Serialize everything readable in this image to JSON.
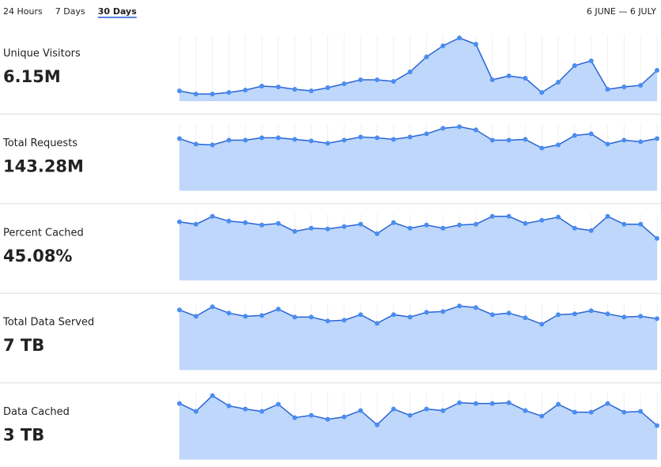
{
  "tabs": [
    {
      "label": "24 Hours",
      "selected": false
    },
    {
      "label": "7 Days",
      "selected": false
    },
    {
      "label": "30 Days",
      "selected": true
    }
  ],
  "date_range": "6 JUNE — 6 JULY",
  "chart_data": [
    {
      "type": "area",
      "title": "Unique Visitors",
      "total": "6.15M",
      "ylim": [
        0,
        84
      ],
      "grid": true,
      "color": "#2a64d6",
      "fill": "#bed7fb",
      "marker_color": "#4a8df0",
      "values": [
        13,
        9,
        9,
        11,
        14,
        19,
        18,
        15,
        13,
        17,
        22,
        27,
        27,
        25,
        37,
        56,
        70,
        80,
        72,
        27,
        32,
        29,
        11,
        24,
        45,
        51,
        15,
        18,
        20,
        39
      ]
    },
    {
      "type": "area",
      "title": "Total Requests",
      "total": "143.28M",
      "ylim": [
        0,
        84
      ],
      "grid": true,
      "color": "#2a64d6",
      "fill": "#bed7fb",
      "marker_color": "#4a8df0",
      "values": [
        66,
        59,
        58,
        64,
        64,
        67,
        67,
        65,
        63,
        60,
        64,
        68,
        67,
        65,
        68,
        72,
        79,
        81,
        77,
        64,
        64,
        65,
        54,
        58,
        70,
        72,
        59,
        64,
        62,
        66
      ]
    },
    {
      "type": "area",
      "title": "Percent Cached",
      "total": "45.08%",
      "ylim": [
        0,
        84
      ],
      "grid": true,
      "color": "#2a64d6",
      "fill": "#bed7fb",
      "marker_color": "#4a8df0",
      "values": [
        74,
        71,
        81,
        75,
        73,
        70,
        72,
        62,
        66,
        65,
        68,
        71,
        59,
        73,
        66,
        70,
        66,
        70,
        71,
        81,
        81,
        72,
        76,
        80,
        66,
        63,
        81,
        71,
        71,
        53
      ]
    },
    {
      "type": "area",
      "title": "Total Data Served",
      "total": "7 TB",
      "ylim": [
        0,
        84
      ],
      "grid": true,
      "color": "#2a64d6",
      "fill": "#bed7fb",
      "marker_color": "#4a8df0",
      "values": [
        76,
        68,
        80,
        72,
        68,
        69,
        77,
        67,
        67,
        62,
        63,
        70,
        59,
        70,
        67,
        73,
        74,
        81,
        79,
        70,
        72,
        66,
        58,
        70,
        71,
        75,
        71,
        67,
        68,
        65
      ]
    },
    {
      "type": "area",
      "title": "Data Cached",
      "total": "3 TB",
      "ylim": [
        0,
        84
      ],
      "grid": true,
      "color": "#2a64d6",
      "fill": "#bed7fb",
      "marker_color": "#4a8df0",
      "values": [
        71,
        61,
        81,
        68,
        64,
        61,
        70,
        53,
        56,
        51,
        54,
        62,
        44,
        64,
        56,
        64,
        62,
        72,
        71,
        71,
        72,
        62,
        55,
        70,
        60,
        60,
        71,
        60,
        61,
        43
      ]
    }
  ]
}
